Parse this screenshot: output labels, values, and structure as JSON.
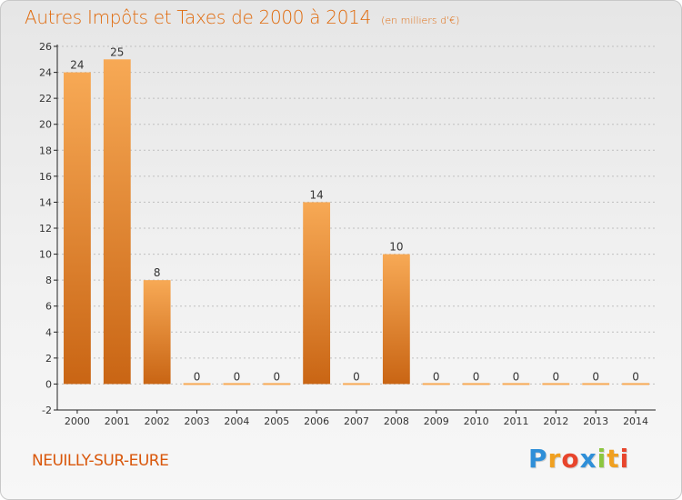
{
  "title": "Autres Impôts et Taxes de 2000 à 2014",
  "subtitle": "(en milliers d'€)",
  "commune": "NEUILLY-SUR-EURE",
  "brand": {
    "letters": [
      "P",
      "r",
      "o",
      "x",
      "i",
      "t",
      "i"
    ],
    "colors": [
      "#2f8fd8",
      "#f0a020",
      "#e8452c",
      "#2f8fd8",
      "#8cc63f",
      "#f0a020",
      "#e8452c"
    ]
  },
  "colors": {
    "bar_light": "#f7a955",
    "bar_dark": "#c96514",
    "axis": "#222222",
    "grid": "#bfbfbf",
    "title": "#e06a0c"
  },
  "chart_data": {
    "type": "bar",
    "categories": [
      "2000",
      "2001",
      "2002",
      "2003",
      "2004",
      "2005",
      "2006",
      "2007",
      "2008",
      "2009",
      "2010",
      "2011",
      "2012",
      "2013",
      "2014"
    ],
    "values": [
      24,
      25,
      8,
      0,
      0,
      0,
      14,
      0,
      10,
      0,
      0,
      0,
      0,
      0,
      0
    ],
    "data_labels": [
      "24",
      "25",
      "8",
      "0",
      "0",
      "0",
      "14",
      "0",
      "10",
      "0",
      "0",
      "0",
      "0",
      "0",
      "0"
    ],
    "title": "Autres Impôts et Taxes de 2000 à 2014",
    "subtitle": "(en milliers d'€)",
    "xlabel": "",
    "ylabel": "",
    "ylim": [
      -2,
      26
    ],
    "yticks": [
      "-2",
      "0",
      "2",
      "4",
      "6",
      "8",
      "10",
      "12",
      "14",
      "16",
      "18",
      "20",
      "22",
      "24",
      "26"
    ],
    "grid": "horizontal dashed",
    "legend": "none"
  }
}
